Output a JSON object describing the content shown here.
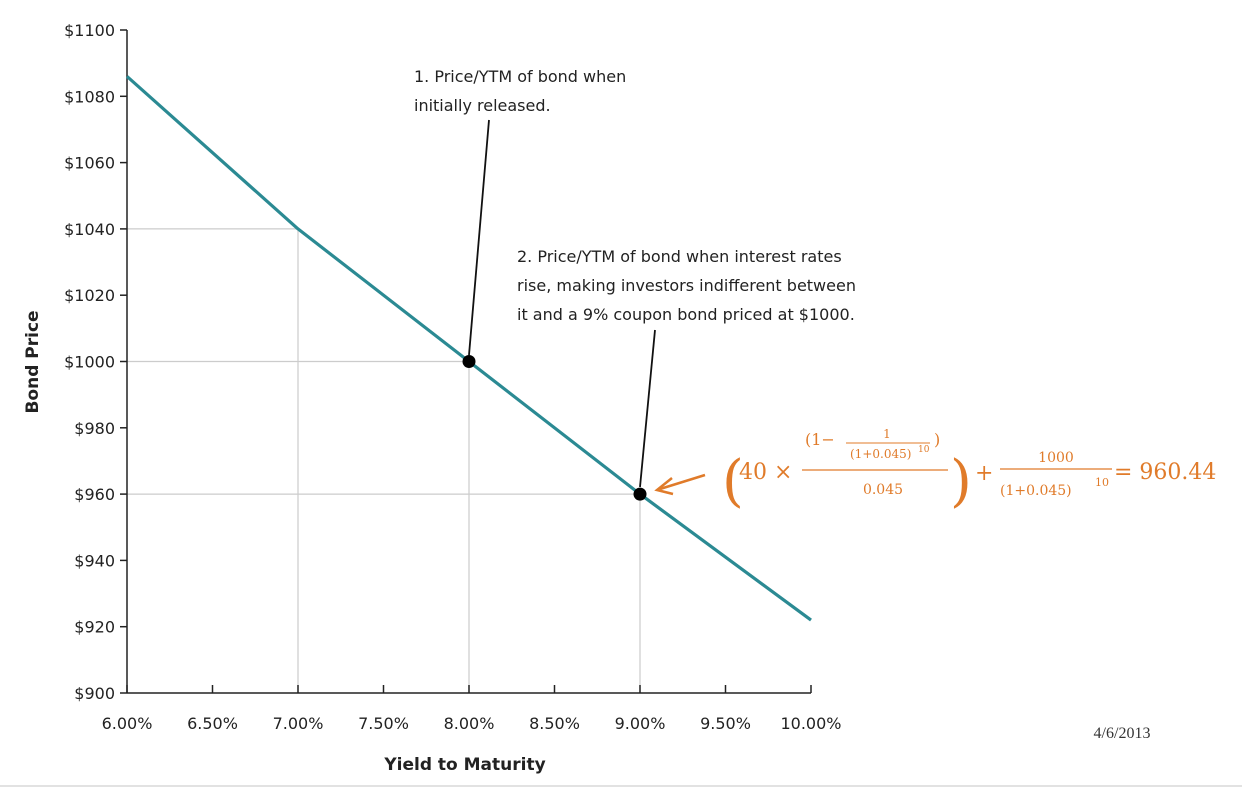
{
  "chart_data": {
    "type": "line",
    "xlabel": "Yield to Maturity",
    "ylabel": "Bond Price",
    "x_ticks": [
      6.0,
      6.5,
      7.0,
      7.5,
      8.0,
      8.5,
      9.0,
      9.5,
      10.0
    ],
    "x_tick_labels": [
      "6.00%",
      "6.50%",
      "7.00%",
      "7.50%",
      "8.00%",
      "8.50%",
      "9.00%",
      "9.50%",
      "10.00%"
    ],
    "y_ticks": [
      900,
      920,
      940,
      960,
      980,
      1000,
      1020,
      1040,
      1060,
      1080,
      1100
    ],
    "y_tick_labels": [
      "$900",
      "$920",
      "$940",
      "$960",
      "$980",
      "$1000",
      "$1020",
      "$1040",
      "$1060",
      "$1080",
      "$1100"
    ],
    "xlim": [
      6.0,
      10.0
    ],
    "ylim": [
      900,
      1100
    ],
    "grid": "reference lines at 7.00%, 8.00%, 9.00% and $1040, $1000, $960",
    "reference_lines": [
      {
        "x": 7.0,
        "y": 1040
      },
      {
        "x": 8.0,
        "y": 1000
      },
      {
        "x": 9.0,
        "y": 960
      }
    ],
    "series": [
      {
        "color": "#2b8a93",
        "x": [
          6.0,
          7.0,
          8.0,
          9.0,
          10.0
        ],
        "y": [
          1086,
          1040,
          1000,
          960,
          922
        ]
      }
    ],
    "highlighted_points": [
      {
        "x": 8.0,
        "y": 1000
      },
      {
        "x": 9.0,
        "y": 960
      }
    ],
    "annotations": [
      {
        "lines": [
          "1. Price/YTM of bond when",
          "initially released."
        ]
      },
      {
        "lines": [
          "2. Price/YTM of bond when interest rates",
          "rise, making investors indifferent between",
          "it and a 9% coupon bond priced at $1000."
        ]
      }
    ],
    "formula": {
      "coupon": "40 ×",
      "one_minus": "(1−",
      "inner_one": "1",
      "inner_den": "(1+0.045)",
      "inner_exp": "10",
      "close": ")",
      "rate": "0.045",
      "plus": "+",
      "face": "1000",
      "den2": "(1+0.045)",
      "exp2": "10",
      "result": "= 960.44",
      "color": "#e07b2a"
    },
    "date": "4/6/2013"
  }
}
